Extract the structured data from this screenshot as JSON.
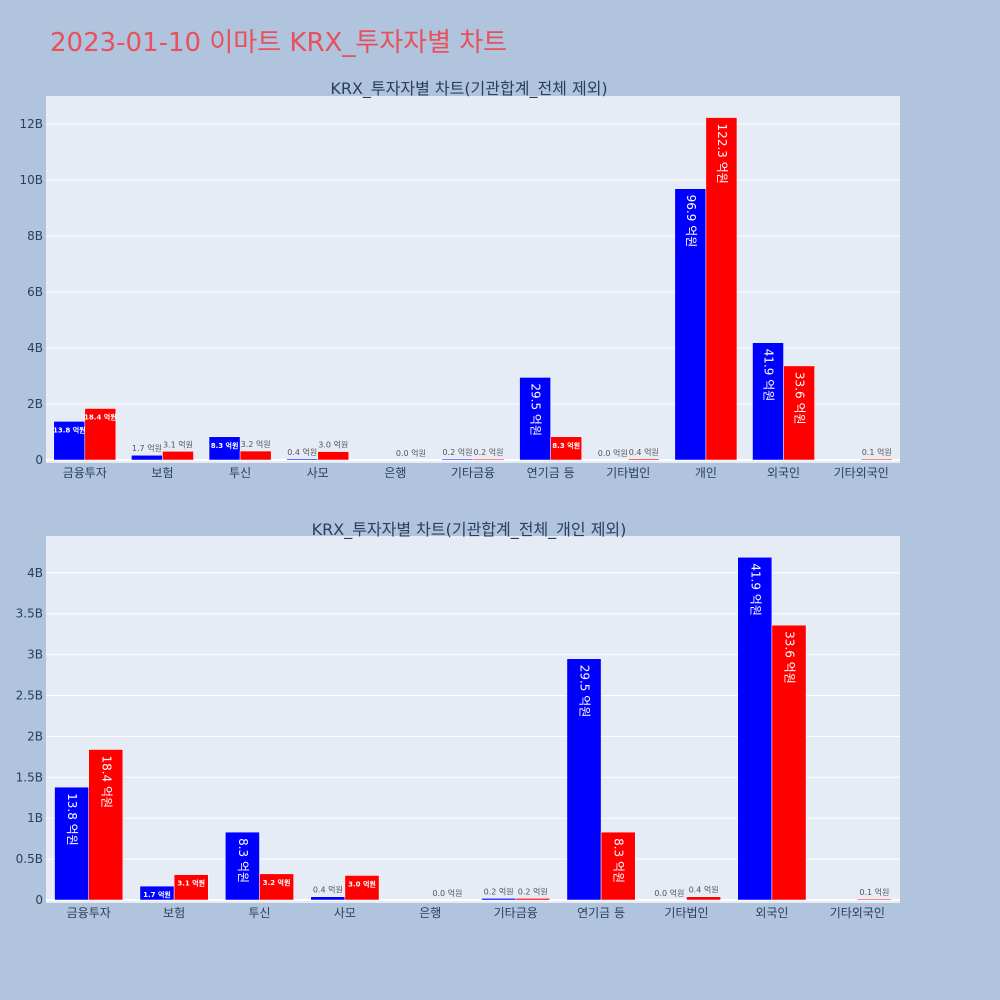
{
  "page": {
    "title": "2023-01-10 이마트 KRX_투자자별 차트",
    "colors": {
      "background": "#b0c4de",
      "plot_bg": "#e5ecf6",
      "buy": "#0000ff",
      "sell": "#ff0000",
      "title": "#e8505b"
    }
  },
  "chart_data": [
    {
      "type": "bar",
      "title": "KRX_투자자별 차트(기관합계_전체 제외)",
      "categories": [
        "금융투자",
        "보험",
        "투신",
        "사모",
        "은행",
        "기타금융",
        "연기금 등",
        "기타법인",
        "개인",
        "외국인",
        "기타외국인"
      ],
      "series": [
        {
          "color": "#0000ff",
          "values": [
            1.38,
            0.17,
            0.83,
            0.04,
            0.0,
            0.02,
            2.95,
            0.0,
            9.69,
            4.19,
            0.0
          ],
          "labels": [
            "13.8 억원",
            "1.7 억원",
            "8.3 억원",
            "0.4 억원",
            "",
            "0.2 억원",
            "29.5 억원",
            "0.0 억원",
            "96.9 억원",
            "41.9 억원",
            ""
          ]
        },
        {
          "color": "#ff0000",
          "values": [
            1.84,
            0.31,
            0.32,
            0.3,
            0.0,
            0.02,
            0.83,
            0.04,
            12.23,
            3.36,
            0.01
          ],
          "labels": [
            "18.4 억원",
            "3.1 억원",
            "3.2 억원",
            "3.0 억원",
            "0.0 억원",
            "0.2 억원",
            "8.3 억원",
            "0.4 억원",
            "122.3 억원",
            "33.6 억원",
            "0.1 억원"
          ]
        }
      ],
      "ylim": [
        0,
        13
      ],
      "yticks": [
        0,
        2,
        4,
        6,
        8,
        10,
        12
      ],
      "ytick_labels": [
        "0",
        "2B",
        "4B",
        "6B",
        "8B",
        "10B",
        "12B"
      ],
      "grid": true
    },
    {
      "type": "bar",
      "title": "KRX_투자자별 차트(기관합계_전체_개인 제외)",
      "categories": [
        "금융투자",
        "보험",
        "투신",
        "사모",
        "은행",
        "기타금융",
        "연기금 등",
        "기타법인",
        "외국인",
        "기타외국인"
      ],
      "series": [
        {
          "color": "#0000ff",
          "values": [
            1.38,
            0.17,
            0.83,
            0.04,
            0.0,
            0.02,
            2.95,
            0.0,
            4.19,
            0.0
          ],
          "labels": [
            "13.8 억원",
            "1.7 억원",
            "8.3 억원",
            "0.4 억원",
            "",
            "0.2 억원",
            "29.5 억원",
            "0.0 억원",
            "41.9 억원",
            ""
          ]
        },
        {
          "color": "#ff0000",
          "values": [
            1.84,
            0.31,
            0.32,
            0.3,
            0.0,
            0.02,
            0.83,
            0.04,
            3.36,
            0.01
          ],
          "labels": [
            "18.4 억원",
            "3.1 억원",
            "3.2 억원",
            "3.0 억원",
            "0.0 억원",
            "0.2 억원",
            "8.3 억원",
            "0.4 억원",
            "33.6 억원",
            "0.1 억원"
          ]
        }
      ],
      "ylim": [
        0,
        4.45
      ],
      "yticks": [
        0,
        0.5,
        1,
        1.5,
        2,
        2.5,
        3,
        3.5,
        4
      ],
      "ytick_labels": [
        "0",
        "0.5B",
        "1B",
        "1.5B",
        "2B",
        "2.5B",
        "3B",
        "3.5B",
        "4B"
      ],
      "grid": true
    }
  ]
}
